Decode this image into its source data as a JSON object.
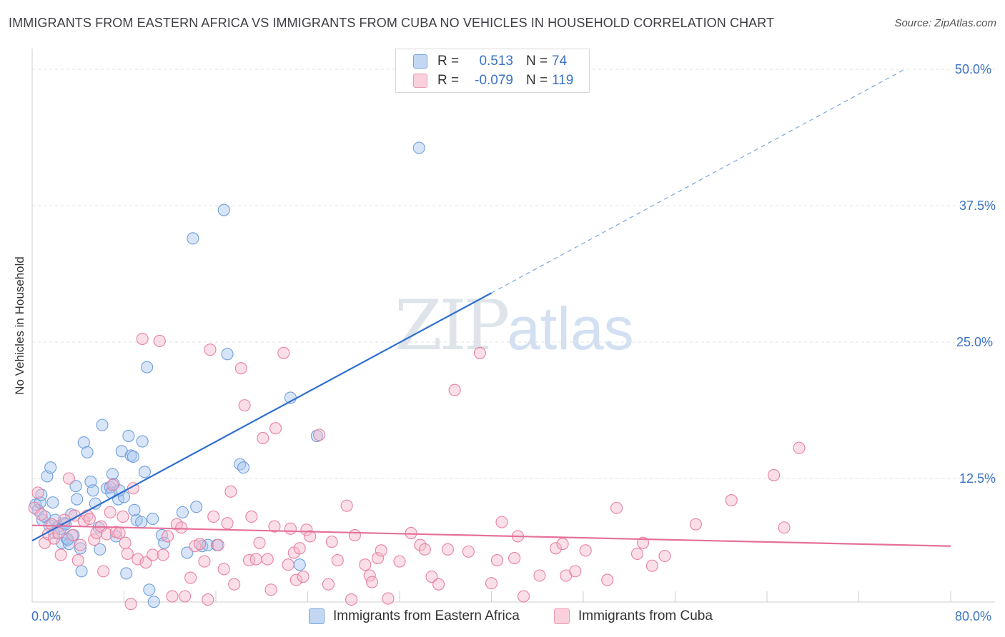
{
  "title": "IMMIGRANTS FROM EASTERN AFRICA VS IMMIGRANTS FROM CUBA NO VEHICLES IN HOUSEHOLD CORRELATION CHART",
  "source": "Source: ZipAtlas.com",
  "watermark": {
    "zip": "ZIP",
    "atlas": "atlas"
  },
  "legend": {
    "rows": [
      {
        "r_label": "R =",
        "r_value": "0.513",
        "n_label": "N =",
        "n_value": "74",
        "color": "#a9c6ef"
      },
      {
        "r_label": "R =",
        "r_value": "-0.079",
        "n_label": "N =",
        "n_value": "119",
        "color": "#f6b8cb"
      }
    ]
  },
  "chart_data": {
    "type": "scatter",
    "title": "IMMIGRANTS FROM EASTERN AFRICA VS IMMIGRANTS FROM CUBA NO VEHICLES IN HOUSEHOLD CORRELATION CHART",
    "xlabel": "",
    "ylabel": "No Vehicles in Household",
    "xlim": [
      0,
      80
    ],
    "ylim": [
      0,
      50
    ],
    "x_tick_labels": [
      "0.0%",
      "80.0%"
    ],
    "y_tick_labels": [
      "50.0%",
      "37.5%",
      "25.0%",
      "12.5%"
    ],
    "y_ticks": [
      50,
      37.5,
      25,
      12.5
    ],
    "grid": true,
    "legend_position": "bottom-center",
    "series": [
      {
        "name": "Immigrants from Eastern Africa",
        "color": "#6f9fdc",
        "fill": "#a9c6ef",
        "trend": {
          "x0": 0,
          "y0": 6.8,
          "x1": 40,
          "y1": 29.5,
          "dash_to_x": 76,
          "dash_to_y": 50
        },
        "points": [
          [
            0.3,
            10.1
          ],
          [
            0.5,
            9.6
          ],
          [
            0.7,
            10.3
          ],
          [
            0.9,
            8.7
          ],
          [
            1.1,
            9.0
          ],
          [
            1.3,
            12.7
          ],
          [
            1.5,
            8.2
          ],
          [
            1.6,
            13.5
          ],
          [
            1.8,
            10.3
          ],
          [
            2.0,
            8.7
          ],
          [
            2.3,
            8.1
          ],
          [
            2.5,
            7.9
          ],
          [
            2.6,
            6.6
          ],
          [
            2.8,
            8.4
          ],
          [
            3.0,
            7.0
          ],
          [
            3.2,
            6.5
          ],
          [
            3.4,
            9.2
          ],
          [
            3.6,
            7.3
          ],
          [
            3.8,
            11.8
          ],
          [
            3.9,
            10.6
          ],
          [
            4.2,
            6.1
          ],
          [
            4.3,
            4.0
          ],
          [
            4.5,
            15.8
          ],
          [
            4.8,
            14.9
          ],
          [
            5.1,
            12.2
          ],
          [
            5.3,
            11.4
          ],
          [
            5.5,
            10.2
          ],
          [
            5.9,
            6.0
          ],
          [
            6.1,
            17.4
          ],
          [
            6.5,
            11.6
          ],
          [
            6.8,
            11.7
          ],
          [
            6.9,
            11.2
          ],
          [
            7.0,
            12.9
          ],
          [
            7.1,
            12.0
          ],
          [
            7.3,
            7.2
          ],
          [
            7.5,
            10.6
          ],
          [
            7.8,
            15.0
          ],
          [
            8.0,
            10.8
          ],
          [
            8.2,
            3.8
          ],
          [
            8.4,
            16.4
          ],
          [
            8.6,
            14.6
          ],
          [
            8.8,
            14.5
          ],
          [
            9.1,
            8.7
          ],
          [
            9.5,
            8.5
          ],
          [
            9.6,
            15.9
          ],
          [
            9.8,
            13.1
          ],
          [
            10.0,
            22.7
          ],
          [
            10.2,
            2.3
          ],
          [
            10.5,
            8.8
          ],
          [
            10.6,
            1.2
          ],
          [
            11.3,
            7.3
          ],
          [
            11.5,
            6.6
          ],
          [
            13.1,
            9.4
          ],
          [
            13.5,
            5.7
          ],
          [
            14.0,
            34.5
          ],
          [
            14.3,
            9.9
          ],
          [
            14.8,
            6.3
          ],
          [
            15.3,
            6.4
          ],
          [
            16.1,
            6.4
          ],
          [
            16.7,
            37.1
          ],
          [
            17.0,
            23.9
          ],
          [
            18.1,
            13.8
          ],
          [
            18.4,
            13.5
          ],
          [
            22.5,
            19.9
          ],
          [
            23.3,
            4.6
          ],
          [
            24.8,
            16.4
          ],
          [
            33.7,
            42.8
          ],
          [
            3.1,
            6.9
          ],
          [
            1.9,
            7.5
          ],
          [
            5.8,
            8.0
          ],
          [
            0.8,
            11.0
          ],
          [
            2.9,
            8.3
          ],
          [
            8.9,
            9.6
          ],
          [
            7.6,
            11.4
          ]
        ]
      },
      {
        "name": "Immigrants from Cuba",
        "color": "#e8819f",
        "fill": "#f6b8cb",
        "trend": {
          "x0": 0,
          "y0": 8.2,
          "x1": 80,
          "y1": 6.3
        },
        "points": [
          [
            0.2,
            9.8
          ],
          [
            0.5,
            11.2
          ],
          [
            0.8,
            9.2
          ],
          [
            1.1,
            6.6
          ],
          [
            1.4,
            7.4
          ],
          [
            1.7,
            8.3
          ],
          [
            1.9,
            7.0
          ],
          [
            2.3,
            7.5
          ],
          [
            2.5,
            5.5
          ],
          [
            2.8,
            8.7
          ],
          [
            3.2,
            12.5
          ],
          [
            3.5,
            7.3
          ],
          [
            3.7,
            9.1
          ],
          [
            4.0,
            5.0
          ],
          [
            4.2,
            6.4
          ],
          [
            4.5,
            8.6
          ],
          [
            4.8,
            9.1
          ],
          [
            5.0,
            8.8
          ],
          [
            5.4,
            6.9
          ],
          [
            5.6,
            7.5
          ],
          [
            6.0,
            8.1
          ],
          [
            6.2,
            4.0
          ],
          [
            6.5,
            7.4
          ],
          [
            6.8,
            9.4
          ],
          [
            7.0,
            11.9
          ],
          [
            7.3,
            7.6
          ],
          [
            7.6,
            7.5
          ],
          [
            7.9,
            9.0
          ],
          [
            8.1,
            6.6
          ],
          [
            8.3,
            5.6
          ],
          [
            8.6,
            1.0
          ],
          [
            8.8,
            11.6
          ],
          [
            9.2,
            5.1
          ],
          [
            9.6,
            25.3
          ],
          [
            9.9,
            4.8
          ],
          [
            10.5,
            5.5
          ],
          [
            11.1,
            25.1
          ],
          [
            11.4,
            5.5
          ],
          [
            11.8,
            7.2
          ],
          [
            12.2,
            1.7
          ],
          [
            12.6,
            8.3
          ],
          [
            13.0,
            8.0
          ],
          [
            13.3,
            1.7
          ],
          [
            13.8,
            3.4
          ],
          [
            14.2,
            6.3
          ],
          [
            14.6,
            6.5
          ],
          [
            15.0,
            4.9
          ],
          [
            15.3,
            1.4
          ],
          [
            15.5,
            24.3
          ],
          [
            15.8,
            9.0
          ],
          [
            16.2,
            6.4
          ],
          [
            16.7,
            4.2
          ],
          [
            17.0,
            8.4
          ],
          [
            17.3,
            11.3
          ],
          [
            17.6,
            2.8
          ],
          [
            18.2,
            22.6
          ],
          [
            18.5,
            19.2
          ],
          [
            18.9,
            5.0
          ],
          [
            19.1,
            9.0
          ],
          [
            19.5,
            5.1
          ],
          [
            19.8,
            6.6
          ],
          [
            20.1,
            16.2
          ],
          [
            20.5,
            5.1
          ],
          [
            20.8,
            2.3
          ],
          [
            21.1,
            8.1
          ],
          [
            21.2,
            17.1
          ],
          [
            21.9,
            24.0
          ],
          [
            22.3,
            4.6
          ],
          [
            22.5,
            7.9
          ],
          [
            22.8,
            5.7
          ],
          [
            23.0,
            3.2
          ],
          [
            23.3,
            6.1
          ],
          [
            23.6,
            3.5
          ],
          [
            23.9,
            7.8
          ],
          [
            24.2,
            7.2
          ],
          [
            25.0,
            16.5
          ],
          [
            25.8,
            2.8
          ],
          [
            26.1,
            6.7
          ],
          [
            26.6,
            5.0
          ],
          [
            27.4,
            10.0
          ],
          [
            27.8,
            1.4
          ],
          [
            28.1,
            7.3
          ],
          [
            29.0,
            4.6
          ],
          [
            29.4,
            3.6
          ],
          [
            29.6,
            3.0
          ],
          [
            30.1,
            5.2
          ],
          [
            30.4,
            5.9
          ],
          [
            31.0,
            1.5
          ],
          [
            32.0,
            4.9
          ],
          [
            33.0,
            7.5
          ],
          [
            33.8,
            6.4
          ],
          [
            34.2,
            6.0
          ],
          [
            34.8,
            3.5
          ],
          [
            35.4,
            2.8
          ],
          [
            36.2,
            6.0
          ],
          [
            36.8,
            20.6
          ],
          [
            38.0,
            5.8
          ],
          [
            39.0,
            24.0
          ],
          [
            40.0,
            2.9
          ],
          [
            40.5,
            5.0
          ],
          [
            40.9,
            8.5
          ],
          [
            42.0,
            5.2
          ],
          [
            42.3,
            7.2
          ],
          [
            42.8,
            1.7
          ],
          [
            44.2,
            3.6
          ],
          [
            45.6,
            6.1
          ],
          [
            46.2,
            6.5
          ],
          [
            46.5,
            3.6
          ],
          [
            47.3,
            4.0
          ],
          [
            48.2,
            5.9
          ],
          [
            50.1,
            3.2
          ],
          [
            50.9,
            9.8
          ],
          [
            52.7,
            5.6
          ],
          [
            53.2,
            6.6
          ],
          [
            54.0,
            4.5
          ],
          [
            55.1,
            5.4
          ],
          [
            57.8,
            8.3
          ],
          [
            60.9,
            10.5
          ],
          [
            64.6,
            12.8
          ],
          [
            65.5,
            8.0
          ],
          [
            66.8,
            15.3
          ]
        ]
      }
    ]
  },
  "bottom_legend": [
    "Immigrants from Eastern Africa",
    "Immigrants from Cuba"
  ]
}
